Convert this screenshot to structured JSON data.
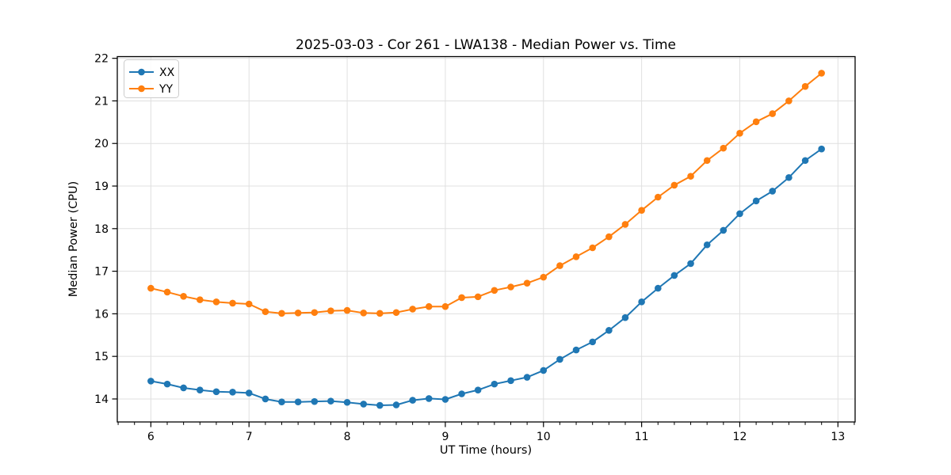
{
  "title": "2025-03-03 - Cor 261 - LWA138 - Median Power vs. Time",
  "colors": {
    "series_xx": "#1f77b4",
    "series_yy": "#ff7f0e",
    "grid": "#e0e0e0",
    "spine": "#000000",
    "legend_border": "#cccccc",
    "background": "#ffffff"
  },
  "chart_data": {
    "type": "line",
    "title": "2025-03-03 - Cor 261 - LWA138 - Median Power vs. Time",
    "xlabel": "UT Time (hours)",
    "ylabel": "Median Power (CPU)",
    "xlim": [
      5.658,
      13.175
    ],
    "ylim": [
      13.46,
      22.04
    ],
    "xticks": [
      6,
      7,
      8,
      9,
      10,
      11,
      12,
      13
    ],
    "yticks": [
      14,
      15,
      16,
      17,
      18,
      19,
      20,
      21,
      22
    ],
    "minor_xtick_step": 0.166667,
    "grid": true,
    "legend_position": "upper-left",
    "marker": "circle",
    "x": [
      6.0,
      6.167,
      6.333,
      6.5,
      6.667,
      6.833,
      7.0,
      7.167,
      7.333,
      7.5,
      7.667,
      7.833,
      8.0,
      8.167,
      8.333,
      8.5,
      8.667,
      8.833,
      9.0,
      9.167,
      9.333,
      9.5,
      9.667,
      9.833,
      10.0,
      10.167,
      10.333,
      10.5,
      10.667,
      10.833,
      11.0,
      11.167,
      11.333,
      11.5,
      11.667,
      11.833,
      12.0,
      12.167,
      12.333,
      12.5,
      12.667,
      12.833
    ],
    "series": [
      {
        "name": "XX",
        "color": "#1f77b4",
        "values": [
          14.42,
          14.35,
          14.26,
          14.21,
          14.17,
          14.16,
          14.14,
          14.0,
          13.93,
          13.93,
          13.94,
          13.95,
          13.92,
          13.88,
          13.85,
          13.86,
          13.97,
          14.01,
          13.99,
          14.12,
          14.21,
          14.35,
          14.43,
          14.51,
          14.67,
          14.93,
          15.15,
          15.34,
          15.61,
          15.91,
          16.28,
          16.6,
          16.9,
          17.18,
          17.62,
          17.96,
          18.35,
          18.65,
          18.88,
          19.2,
          19.6,
          19.87
        ]
      },
      {
        "name": "YY",
        "color": "#ff7f0e",
        "values": [
          16.6,
          16.51,
          16.41,
          16.33,
          16.28,
          16.25,
          16.23,
          16.05,
          16.01,
          16.02,
          16.03,
          16.07,
          16.08,
          16.02,
          16.01,
          16.03,
          16.11,
          16.17,
          16.17,
          16.38,
          16.4,
          16.55,
          16.63,
          16.72,
          16.86,
          17.13,
          17.34,
          17.55,
          17.81,
          18.1,
          18.43,
          18.74,
          19.02,
          19.23,
          19.6,
          19.89,
          20.24,
          20.51,
          20.7,
          21.0,
          21.34,
          21.65
        ]
      }
    ]
  }
}
